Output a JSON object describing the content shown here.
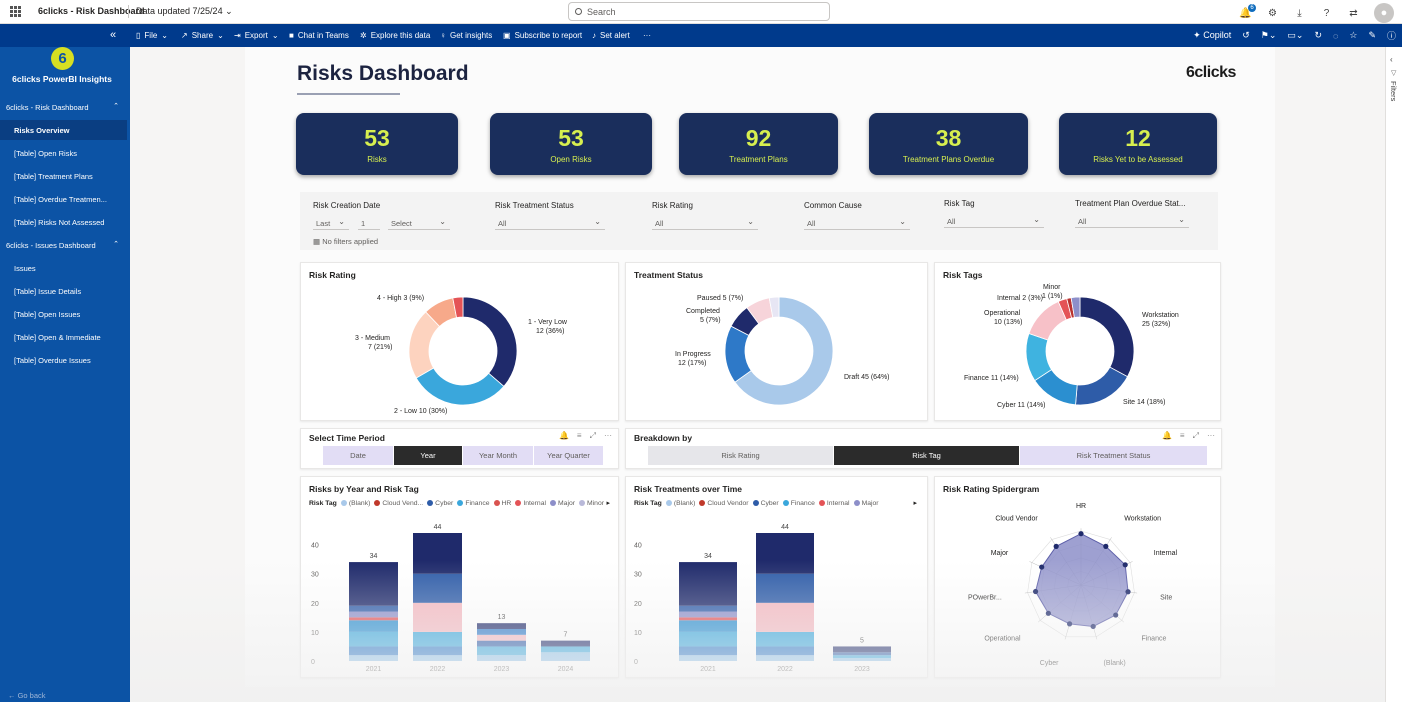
{
  "app": {
    "title": "6clicks - Risk Dashboard",
    "updated": "Data updated 7/25/24",
    "search_placeholder": "Search",
    "notif_count": "6"
  },
  "cmdbar": {
    "file": "File",
    "share": "Share",
    "export": "Export",
    "teams": "Chat in Teams",
    "explore": "Explore this data",
    "insights": "Get insights",
    "subscribe": "Subscribe to report",
    "alert": "Set alert",
    "more": "···",
    "copilot": "Copilot"
  },
  "sidebar": {
    "brand": "6clicks PowerBI Insights",
    "logo_digit": "6",
    "items": [
      {
        "label": "6clicks - Risk Dashboard",
        "group": true
      },
      {
        "label": "Risks Overview",
        "active": true
      },
      {
        "label": "[Table] Open Risks"
      },
      {
        "label": "[Table] Treatment Plans"
      },
      {
        "label": "[Table] Overdue Treatmen..."
      },
      {
        "label": "[Table] Risks Not Assessed"
      },
      {
        "label": "6clicks - Issues Dashboard",
        "group": true
      },
      {
        "label": "Issues"
      },
      {
        "label": "[Table] Issue Details"
      },
      {
        "label": "[Table] Open Issues"
      },
      {
        "label": "[Table] Open & Immediate"
      },
      {
        "label": "[Table] Overdue Issues"
      }
    ],
    "go_back": "Go back"
  },
  "filters_label": "Filters",
  "report": {
    "title": "Risks Dashboard",
    "logo": "6clicks",
    "kpis": [
      {
        "value": "53",
        "label": "Risks"
      },
      {
        "value": "53",
        "label": "Open Risks"
      },
      {
        "value": "92",
        "label": "Treatment Plans"
      },
      {
        "value": "38",
        "label": "Treatment Plans Overdue"
      },
      {
        "value": "12",
        "label": "Risks Yet to be Assessed"
      }
    ],
    "slicers": {
      "creation_date": {
        "label": "Risk Creation Date",
        "v1": "Last",
        "v2": "1",
        "v3": "Select"
      },
      "no_filters": "No filters applied",
      "treatment_status": {
        "label": "Risk Treatment Status",
        "value": "All"
      },
      "rating": {
        "label": "Risk Rating",
        "value": "All"
      },
      "common_cause": {
        "label": "Common Cause",
        "value": "All"
      },
      "tag": {
        "label": "Risk Tag",
        "value": "All"
      },
      "overdue": {
        "label": "Treatment Plan Overdue Stat...",
        "value": "All"
      }
    },
    "donut_titles": {
      "rating": "Risk Rating",
      "treatment": "Treatment Status",
      "tags": "Risk Tags"
    },
    "time_period": {
      "title": "Select Time Period",
      "tabs": [
        "Date",
        "Year",
        "Year Month",
        "Year Quarter"
      ],
      "active": 1
    },
    "breakdown": {
      "title": "Breakdown by",
      "tabs": [
        "Risk Rating",
        "Risk Tag",
        "Risk Treatment Status"
      ],
      "active": 1
    },
    "bar1_title": "Risks by Year and Risk Tag",
    "bar2_title": "Risk Treatments over Time",
    "radar_title": "Risk Rating Spidergram",
    "legend_label": "Risk Tag"
  },
  "colors": {
    "navy": "#1f2a6b",
    "blue": "#2e5ca8",
    "lightblue": "#3aa7dc",
    "pink": "#f4b9c1",
    "red": "#e45356",
    "salmon": "#f7a98a",
    "peach": "#fdd3bf",
    "lavender": "#8d8fc9"
  },
  "chart_data": [
    {
      "type": "pie",
      "title": "Risk Rating",
      "slices": [
        {
          "label": "1 - Very Low",
          "value": 12,
          "pct": "36%",
          "color": "#1f2a6b"
        },
        {
          "label": "2 - Low",
          "value": 10,
          "pct": "30%",
          "color": "#3aa7dc"
        },
        {
          "label": "3 - Medium",
          "value": 7,
          "pct": "21%",
          "color": "#fdd3bf"
        },
        {
          "label": "4 - High",
          "value": 3,
          "pct": "9%",
          "color": "#f7a98a"
        },
        {
          "label": "",
          "value": 1,
          "pct": "",
          "color": "#e45356"
        }
      ],
      "labels_text": [
        "1 - Very Low",
        "12 (36%)",
        "2 - Low 10 (30%)",
        "3 - Medium",
        "7 (21%)",
        "4 - High 3 (9%)"
      ]
    },
    {
      "type": "pie",
      "title": "Treatment Status",
      "slices": [
        {
          "label": "Draft",
          "value": 45,
          "pct": "64%",
          "color": "#a9c9ea"
        },
        {
          "label": "In Progress",
          "value": 12,
          "pct": "17%",
          "color": "#2e79c8"
        },
        {
          "label": "Completed",
          "value": 5,
          "pct": "7%",
          "color": "#1f2a6b"
        },
        {
          "label": "Paused",
          "value": 5,
          "pct": "7%",
          "color": "#f7d4da"
        },
        {
          "label": "",
          "value": 2,
          "pct": "",
          "color": "#e7e6f4"
        }
      ],
      "labels_text": [
        "Paused 5 (7%)",
        "Completed",
        "5 (7%)",
        "In Progress",
        "12 (17%)",
        "Draft 45 (64%)"
      ]
    },
    {
      "type": "pie",
      "title": "Risk Tags",
      "slices": [
        {
          "label": "Workstation",
          "value": 25,
          "pct": "32%",
          "color": "#1f2a6b"
        },
        {
          "label": "Site",
          "value": 14,
          "pct": "18%",
          "color": "#2e5ca8"
        },
        {
          "label": "Cyber",
          "value": 11,
          "pct": "14%",
          "color": "#2b8fd0"
        },
        {
          "label": "Finance",
          "value": 11,
          "pct": "14%",
          "color": "#3fb3e0"
        },
        {
          "label": "Operational",
          "value": 10,
          "pct": "13%",
          "color": "#f7c1c8"
        },
        {
          "label": "Internal",
          "value": 2,
          "pct": "3%",
          "color": "#e45356"
        },
        {
          "label": "Minor",
          "value": 1,
          "pct": "1%",
          "color": "#b9322f"
        },
        {
          "label": "",
          "value": 2,
          "pct": "",
          "color": "#8d8fc9"
        }
      ],
      "labels_text": [
        "Minor",
        "1 (1%)",
        "Internal 2 (3%)",
        "Operational",
        "10 (13%)",
        "Workstation",
        "25 (32%)",
        "Finance 11 (14%)",
        "Cyber 11 (14%)",
        "Site 14 (18%)"
      ]
    },
    {
      "type": "bar",
      "title": "Risks by Year and Risk Tag",
      "stacked": true,
      "categories": [
        "2021",
        "2022",
        "2023",
        "2024"
      ],
      "totals": [
        34,
        44,
        13,
        7
      ],
      "ylim": [
        0,
        44
      ],
      "yticks": [
        "0",
        "10",
        "20",
        "30",
        "40"
      ],
      "legend": [
        "(Blank)",
        "Cloud Vend...",
        "Cyber",
        "Finance",
        "HR",
        "Internal",
        "Major",
        "Minor"
      ],
      "legend_colors": [
        "#a9c9ea",
        "#c0392b",
        "#2e5ca8",
        "#3aa7dc",
        "#d9534f",
        "#e45356",
        "#8d8fc9",
        "#b9b9d9"
      ],
      "stacks": [
        [
          {
            "v": 2,
            "c": "#8fc1e8"
          },
          {
            "v": 3,
            "c": "#2e79c8"
          },
          {
            "v": 5,
            "c": "#3aa7dc"
          },
          {
            "v": 4,
            "c": "#2b8fd0"
          },
          {
            "v": 1,
            "c": "#e45356"
          },
          {
            "v": 2,
            "c": "#8d8fc9"
          },
          {
            "v": 2,
            "c": "#2e5ca8"
          },
          {
            "v": 15,
            "c": "#1f2a6b"
          }
        ],
        [
          {
            "v": 2,
            "c": "#8fc1e8"
          },
          {
            "v": 3,
            "c": "#2e79c8"
          },
          {
            "v": 5,
            "c": "#3aa7dc"
          },
          {
            "v": 10,
            "c": "#f4b9c1"
          },
          {
            "v": 10,
            "c": "#2e5ca8"
          },
          {
            "v": 14,
            "c": "#1f2a6b"
          }
        ],
        [
          {
            "v": 2,
            "c": "#8fc1e8"
          },
          {
            "v": 3,
            "c": "#3aa7dc"
          },
          {
            "v": 2,
            "c": "#2e5ca8"
          },
          {
            "v": 2,
            "c": "#f4b9c1"
          },
          {
            "v": 2,
            "c": "#2e79c8"
          },
          {
            "v": 2,
            "c": "#1f2a6b"
          }
        ],
        [
          {
            "v": 3,
            "c": "#8fc1e8"
          },
          {
            "v": 2,
            "c": "#3aa7dc"
          },
          {
            "v": 2,
            "c": "#1f2a6b"
          }
        ]
      ]
    },
    {
      "type": "bar",
      "title": "Risk Treatments over Time",
      "stacked": true,
      "categories": [
        "2021",
        "2022",
        "2023"
      ],
      "totals": [
        34,
        44,
        5
      ],
      "ylim": [
        0,
        44
      ],
      "yticks": [
        "0",
        "10",
        "20",
        "30",
        "40"
      ],
      "legend": [
        "(Blank)",
        "Cloud Vendor",
        "Cyber",
        "Finance",
        "Internal",
        "Major"
      ],
      "legend_colors": [
        "#a9c9ea",
        "#c0392b",
        "#2e5ca8",
        "#3aa7dc",
        "#e45356",
        "#8d8fc9"
      ],
      "stacks": [
        [
          {
            "v": 2,
            "c": "#8fc1e8"
          },
          {
            "v": 3,
            "c": "#2e79c8"
          },
          {
            "v": 5,
            "c": "#3aa7dc"
          },
          {
            "v": 4,
            "c": "#2b8fd0"
          },
          {
            "v": 1,
            "c": "#e45356"
          },
          {
            "v": 2,
            "c": "#8d8fc9"
          },
          {
            "v": 2,
            "c": "#2e5ca8"
          },
          {
            "v": 15,
            "c": "#1f2a6b"
          }
        ],
        [
          {
            "v": 2,
            "c": "#8fc1e8"
          },
          {
            "v": 3,
            "c": "#2e79c8"
          },
          {
            "v": 5,
            "c": "#3aa7dc"
          },
          {
            "v": 10,
            "c": "#f4b9c1"
          },
          {
            "v": 10,
            "c": "#2e5ca8"
          },
          {
            "v": 14,
            "c": "#1f2a6b"
          }
        ],
        [
          {
            "v": 1,
            "c": "#8fc1e8"
          },
          {
            "v": 1,
            "c": "#3aa7dc"
          },
          {
            "v": 1,
            "c": "#2e5ca8"
          },
          {
            "v": 2,
            "c": "#1f2a6b"
          }
        ]
      ]
    },
    {
      "type": "radar",
      "title": "Risk Rating Spidergram",
      "axes": [
        "HR",
        "Workstation",
        "Internal",
        "Site",
        "Finance",
        "(Blank)",
        "Cyber",
        "Operational",
        "POwerBr...",
        "Major",
        "Cloud Vendor"
      ],
      "values": [
        0.95,
        0.85,
        0.9,
        0.88,
        0.85,
        0.8,
        0.75,
        0.8,
        0.85,
        0.8,
        0.85
      ]
    }
  ]
}
